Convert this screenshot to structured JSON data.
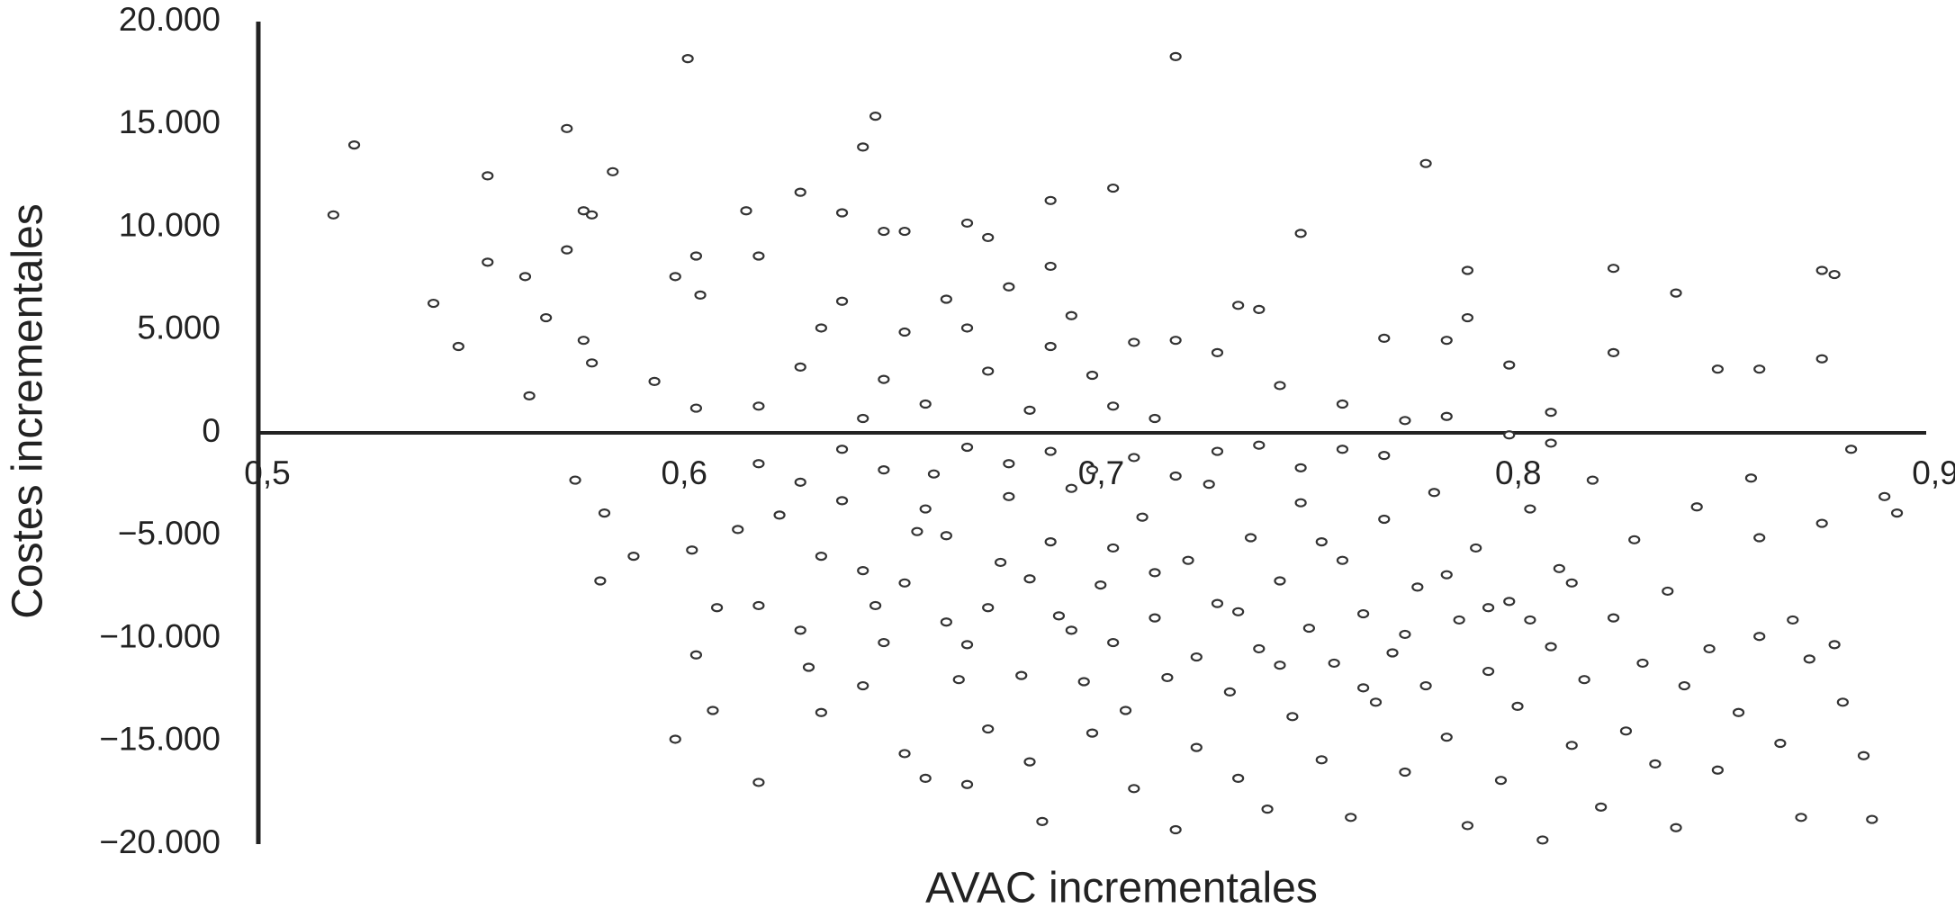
{
  "chart_data": {
    "type": "scatter",
    "x_label": "AVAC incrementales",
    "y_label": "Costes incrementales",
    "color": "#333333",
    "xlim": [
      0.5,
      0.9
    ],
    "xticks": [
      {
        "value": 0.5,
        "label": "0,5"
      },
      {
        "value": 0.6,
        "label": "0,6"
      },
      {
        "value": 0.7,
        "label": "0,7"
      },
      {
        "value": 0.8,
        "label": "0,8"
      },
      {
        "value": 0.9,
        "label": "0,9"
      }
    ],
    "ylim": [
      -20000,
      20000
    ],
    "yticks": [
      {
        "value": -20000,
        "label": "−20.000"
      },
      {
        "value": -15000,
        "label": "−15.000"
      },
      {
        "value": -10000,
        "label": "−10.000"
      },
      {
        "value": -5000,
        "label": "−5.000"
      },
      0,
      {
        "value": 5000,
        "label": "5.000"
      },
      {
        "value": 10000,
        "label": "10.000"
      },
      {
        "value": 15000,
        "label": "15.000"
      },
      {
        "value": 20000,
        "label": "20.000"
      }
    ],
    "x": [
      0.518,
      0.523,
      0.542,
      0.548,
      0.555,
      0.555,
      0.564,
      0.569,
      0.565,
      0.574,
      0.574,
      0.578,
      0.58,
      0.578,
      0.58,
      0.585,
      0.576,
      0.583,
      0.582,
      0.59,
      0.595,
      0.6,
      0.603,
      0.606,
      0.605,
      0.605,
      0.604,
      0.6,
      0.605,
      0.609,
      0.61,
      0.617,
      0.62,
      0.62,
      0.62,
      0.63,
      0.64,
      0.645,
      0.648,
      0.65,
      0.655,
      0.67,
      0.675,
      0.69,
      0.69,
      0.705,
      0.72,
      0.735,
      0.75,
      0.78,
      0.79,
      0.79,
      0.825,
      0.84,
      0.85,
      0.875,
      0.878,
      0.875,
      0.86,
      0.825,
      0.8,
      0.81,
      0.785,
      0.615,
      0.62,
      0.625,
      0.63,
      0.632,
      0.635,
      0.63,
      0.64,
      0.645,
      0.648,
      0.65,
      0.655,
      0.66,
      0.658,
      0.662,
      0.665,
      0.668,
      0.67,
      0.67,
      0.675,
      0.678,
      0.68,
      0.683,
      0.685,
      0.688,
      0.69,
      0.692,
      0.695,
      0.698,
      0.7,
      0.702,
      0.705,
      0.708,
      0.71,
      0.712,
      0.715,
      0.718,
      0.72,
      0.723,
      0.725,
      0.728,
      0.73,
      0.733,
      0.735,
      0.738,
      0.74,
      0.742,
      0.745,
      0.748,
      0.75,
      0.752,
      0.755,
      0.758,
      0.76,
      0.762,
      0.765,
      0.768,
      0.77,
      0.772,
      0.775,
      0.778,
      0.78,
      0.782,
      0.785,
      0.788,
      0.79,
      0.792,
      0.795,
      0.798,
      0.8,
      0.802,
      0.805,
      0.808,
      0.81,
      0.812,
      0.815,
      0.818,
      0.82,
      0.822,
      0.825,
      0.828,
      0.83,
      0.832,
      0.835,
      0.838,
      0.84,
      0.842,
      0.845,
      0.848,
      0.85,
      0.855,
      0.858,
      0.86,
      0.865,
      0.87,
      0.872,
      0.875,
      0.878,
      0.88,
      0.882,
      0.885,
      0.887,
      0.89,
      0.893,
      0.86,
      0.868,
      0.62,
      0.63,
      0.635,
      0.64,
      0.645,
      0.65,
      0.655,
      0.66,
      0.665,
      0.67,
      0.675,
      0.68,
      0.685,
      0.69,
      0.695,
      0.7,
      0.705,
      0.71,
      0.715,
      0.72,
      0.73,
      0.74,
      0.745,
      0.76,
      0.77,
      0.775,
      0.785,
      0.8,
      0.81,
      0.64,
      0.65,
      0.66,
      0.67,
      0.68,
      0.69,
      0.7,
      0.71,
      0.72,
      0.73,
      0.74,
      0.75,
      0.76,
      0.77,
      0.635,
      0.645,
      0.655,
      0.665,
      0.675,
      0.685,
      0.695,
      0.705,
      0.715,
      0.725,
      0.735,
      0.745,
      0.755,
      0.765,
      0.775,
      0.785,
      0.795,
      0.805,
      0.815
    ],
    "values": [
      10600,
      14000,
      6300,
      4200,
      12500,
      8300,
      7600,
      5600,
      1800,
      14800,
      8900,
      10800,
      10600,
      4500,
      3400,
      12700,
      -2300,
      -3900,
      -7200,
      -6000,
      2500,
      7600,
      18200,
      6700,
      8600,
      1200,
      -5700,
      -14900,
      -10800,
      -13500,
      -8500,
      10800,
      8600,
      -8400,
      -17000,
      11700,
      10700,
      13900,
      15400,
      9800,
      9800,
      10200,
      9500,
      11300,
      8100,
      11900,
      18300,
      6200,
      9700,
      13100,
      7900,
      5600,
      8000,
      6800,
      3100,
      7900,
      7700,
      3600,
      3100,
      3900,
      3300,
      1000,
      800,
      -4700,
      -1500,
      -4000,
      -9600,
      -11400,
      -13600,
      -2400,
      -3300,
      -6700,
      -8400,
      -10200,
      -15600,
      -16800,
      -4800,
      -2000,
      -9200,
      -12000,
      -17100,
      -10300,
      -14400,
      -6300,
      -3100,
      -11800,
      -16000,
      -18900,
      -5300,
      -8900,
      -2700,
      -12100,
      -14600,
      -7400,
      -10200,
      -13500,
      -17300,
      -4100,
      -9000,
      -11900,
      -19300,
      -6200,
      -15300,
      -2500,
      -8300,
      -12600,
      -16800,
      -5100,
      -10500,
      -18300,
      -7200,
      -13800,
      -3400,
      -9500,
      -15900,
      -11200,
      -6200,
      -18700,
      -8800,
      -13100,
      -4200,
      -10700,
      -16500,
      -7500,
      -12300,
      -2900,
      -14800,
      -9100,
      -19100,
      -5600,
      -11600,
      -16900,
      -8200,
      -13300,
      -3700,
      -19800,
      -10400,
      -6600,
      -15200,
      -12000,
      -2300,
      -18200,
      -9000,
      -14500,
      -5200,
      -11200,
      -16100,
      -7700,
      -19200,
      -12300,
      -3600,
      -10500,
      -16400,
      -13600,
      -2200,
      -9900,
      -15100,
      -18700,
      -11000,
      -4400,
      -10300,
      -13100,
      -800,
      -15700,
      -18800,
      -3100,
      -3900,
      -5100,
      -9100,
      1300,
      3200,
      5100,
      6400,
      700,
      2600,
      4900,
      1400,
      6500,
      5100,
      3000,
      7100,
      1100,
      4200,
      5700,
      2800,
      1300,
      4400,
      700,
      4500,
      3900,
      6000,
      2300,
      1400,
      4600,
      600,
      4500,
      -100,
      -500,
      -800,
      -1800,
      -3700,
      -700,
      -1500,
      -900,
      -1800,
      -1200,
      -2100,
      -900,
      -600,
      -1700,
      -800,
      -1100,
      -6000,
      -12300,
      -7300,
      -5000,
      -8500,
      -7100,
      -9600,
      -5600,
      -6800,
      -10900,
      -8700,
      -11300,
      -5300,
      -12400,
      -9800,
      -6900,
      -8500,
      -9100,
      -7300
    ]
  }
}
